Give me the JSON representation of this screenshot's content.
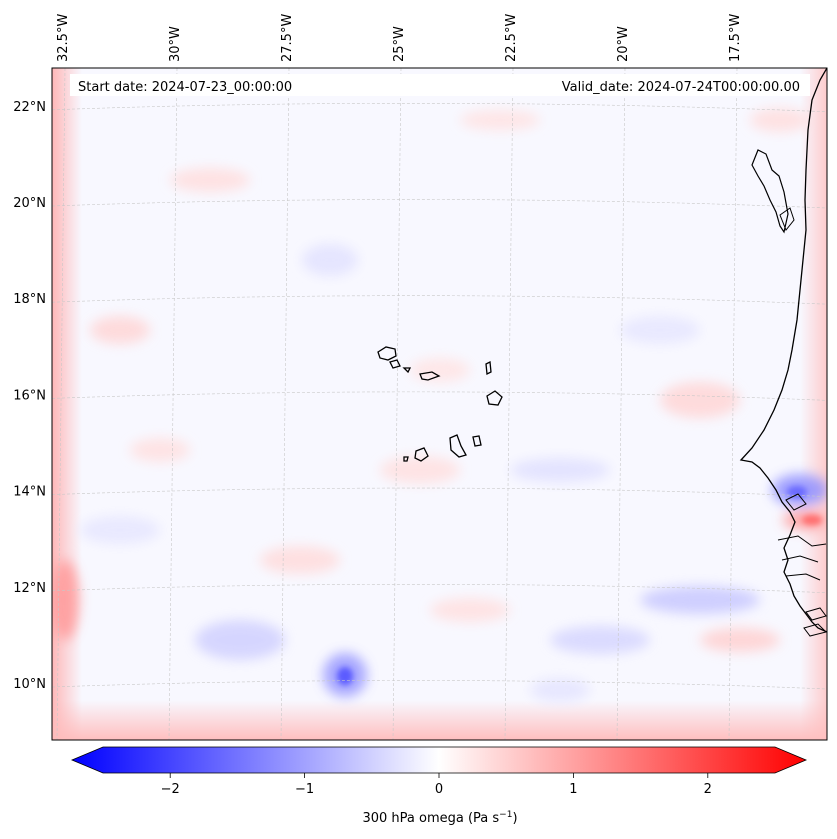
{
  "map": {
    "start_date": "Start date: 2024-07-23_00:00:00",
    "valid_date": "Valid_date: 2024-07-24T00:00:00.00",
    "lon_labels": [
      "32.5°W",
      "30°W",
      "27.5°W",
      "25°W",
      "22.5°W",
      "20°W",
      "17.5°W"
    ],
    "lat_labels": [
      "22°N",
      "20°N",
      "18°N",
      "16°N",
      "14°N",
      "12°N",
      "10°N"
    ],
    "lon_values": [
      -32.5,
      -30,
      -27.5,
      -25,
      -22.5,
      -20,
      -17.5
    ],
    "lat_values": [
      22,
      20,
      18,
      16,
      14,
      12,
      10
    ],
    "variable": "300 hPa omega"
  },
  "colorbar": {
    "label": "300 hPa omega (Pa s",
    "label_sup": "−1",
    "label_end": ")",
    "ticks": [
      "−2",
      "−1",
      "0",
      "1",
      "2"
    ],
    "tick_values": [
      -2,
      -1,
      0,
      1,
      2
    ],
    "range": [
      -2.75,
      2.75
    ],
    "low_color": "#0000ff",
    "mid_color": "#ffffff",
    "high_color": "#ff0000"
  }
}
